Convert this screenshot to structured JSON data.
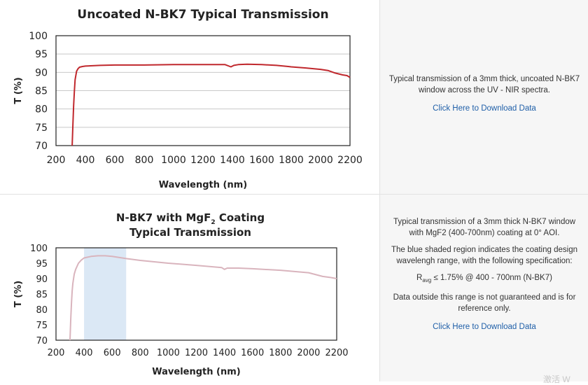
{
  "charts": [
    {
      "title_main": "Uncoated N-BK7 Typical Transmission",
      "title_sub": "",
      "title_line2": "",
      "description": [
        "Typical transmission of a 3mm thick, uncoated N-BK7 window across the UV - NIR spectra."
      ],
      "spec": null,
      "note": "",
      "download_label": "Click Here to Download Data"
    },
    {
      "title_main": "N-BK7 with MgF",
      "title_sub": "2",
      "title_after_sub": " Coating",
      "title_line2": "Typical Transmission",
      "description": [
        "Typical transmission of a 3mm thick N-BK7 window with MgF2 (400-700nm) coating at 0° AOI.",
        "The blue shaded region indicates the coating design wavelengh range, with the following specification:"
      ],
      "spec": {
        "prefix": "R",
        "sub": "avg",
        "rest": " ≤ 1.75% @ 400 - 700nm (N-BK7)"
      },
      "note": "Data outside this range is not guaranteed and is for reference only.",
      "download_label": "Click Here to Download Data"
    }
  ],
  "chart_data": [
    {
      "type": "line",
      "title": "Uncoated N-BK7 Typical Transmission",
      "xlabel": "Wavelength (nm)",
      "ylabel": "T (%)",
      "xlim": [
        200,
        2200
      ],
      "ylim": [
        70,
        100
      ],
      "xticks": [
        200,
        400,
        600,
        800,
        1000,
        1200,
        1400,
        1600,
        1800,
        2000,
        2200
      ],
      "yticks": [
        70,
        75,
        80,
        85,
        90,
        95,
        100
      ],
      "grid": "horizontal",
      "series": [
        {
          "color": "#c0282d",
          "x": [
            310,
            315,
            320,
            325,
            330,
            340,
            350,
            360,
            380,
            400,
            500,
            600,
            800,
            1000,
            1200,
            1350,
            1390,
            1410,
            1440,
            1500,
            1600,
            1700,
            1780,
            1800,
            1900,
            2000,
            2050,
            2100,
            2150,
            2180,
            2200
          ],
          "y": [
            70,
            76,
            81,
            85,
            88,
            90.3,
            91.0,
            91.4,
            91.6,
            91.7,
            91.9,
            92.0,
            92.0,
            92.1,
            92.1,
            92.1,
            91.5,
            91.9,
            92.1,
            92.2,
            92.1,
            91.9,
            91.6,
            91.5,
            91.2,
            90.8,
            90.5,
            89.8,
            89.3,
            89.1,
            88.6
          ]
        }
      ]
    },
    {
      "type": "line",
      "title": "N-BK7 with MgF2 Coating Typical Transmission",
      "xlabel": "Wavelength (nm)",
      "ylabel": "T (%)",
      "xlim": [
        200,
        2200
      ],
      "ylim": [
        70,
        100
      ],
      "xticks": [
        200,
        400,
        600,
        800,
        1000,
        1200,
        1400,
        1600,
        1800,
        2000,
        2200
      ],
      "yticks": [
        70,
        75,
        80,
        85,
        90,
        95,
        100
      ],
      "grid": "none",
      "shaded_region": {
        "x": [
          400,
          700
        ],
        "color": "#dbe8f5"
      },
      "series": [
        {
          "color": "#d9b4bd",
          "x": [
            300,
            305,
            310,
            315,
            320,
            330,
            340,
            360,
            380,
            400,
            450,
            500,
            550,
            600,
            700,
            800,
            1000,
            1200,
            1380,
            1400,
            1420,
            1500,
            1600,
            1800,
            2000,
            2100,
            2150,
            2200
          ],
          "y": [
            70,
            77,
            82,
            86,
            88.5,
            91.5,
            93,
            95,
            96,
            96.7,
            97.2,
            97.4,
            97.4,
            97.2,
            96.5,
            95.9,
            95.0,
            94.3,
            93.6,
            93.0,
            93.4,
            93.4,
            93.2,
            92.7,
            91.9,
            90.7,
            90.4,
            90.0
          ]
        }
      ]
    }
  ],
  "watermark": "激活 W"
}
